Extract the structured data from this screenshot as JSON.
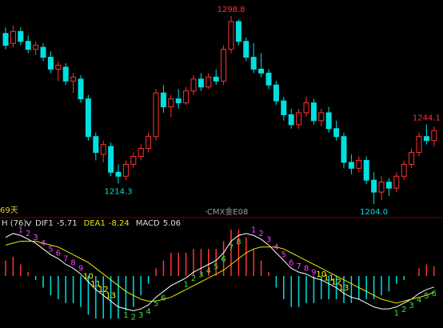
{
  "chart_data": [
    {
      "type": "candlestick",
      "period_label": "69天",
      "instrument": "·CMX金E08",
      "up_color": "#ff3232",
      "down_color": "#00e0e0",
      "open": [
        1290,
        1285,
        1291,
        1286,
        1282,
        1283,
        1278,
        1272,
        1273,
        1266,
        1267,
        1257,
        1238,
        1229,
        1233,
        1220,
        1218,
        1224,
        1228,
        1232,
        1238,
        1260,
        1253,
        1257,
        1255,
        1261,
        1267,
        1263,
        1268,
        1266,
        1282,
        1296,
        1286,
        1278,
        1272,
        1270,
        1264,
        1256,
        1249,
        1244,
        1250,
        1255,
        1246,
        1250,
        1242,
        1238,
        1225,
        1222,
        1226,
        1216,
        1210,
        1215,
        1212,
        1218,
        1224,
        1230,
        1238,
        1236
      ],
      "high": [
        1293,
        1294,
        1293,
        1289,
        1286,
        1285,
        1281,
        1276,
        1275,
        1270,
        1269,
        1259,
        1240,
        1236,
        1235,
        1224,
        1226,
        1230,
        1234,
        1240,
        1262,
        1264,
        1259,
        1262,
        1263,
        1269,
        1270,
        1270,
        1272,
        1284,
        1298.8,
        1297,
        1288,
        1285,
        1280,
        1272,
        1266,
        1258,
        1252,
        1252,
        1258,
        1257,
        1252,
        1253,
        1246,
        1240,
        1229,
        1228,
        1228,
        1220,
        1218,
        1217,
        1220,
        1226,
        1232,
        1240,
        1244.1,
        1243
      ],
      "low": [
        1282,
        1283,
        1284,
        1280,
        1279,
        1276,
        1270,
        1266,
        1264,
        1260,
        1255,
        1236,
        1226,
        1225,
        1218,
        1214.3,
        1216,
        1222,
        1226,
        1230,
        1236,
        1250,
        1248,
        1252,
        1254,
        1259,
        1261,
        1262,
        1264,
        1264,
        1280,
        1284,
        1276,
        1270,
        1268,
        1262,
        1254,
        1246,
        1242,
        1242,
        1248,
        1244,
        1243,
        1240,
        1236,
        1222,
        1219,
        1220,
        1214,
        1204.0,
        1206,
        1208,
        1210,
        1216,
        1222,
        1228,
        1234,
        1233
      ],
      "close": [
        1284,
        1291,
        1286,
        1282,
        1284,
        1278,
        1272,
        1274,
        1266,
        1268,
        1257,
        1238,
        1230,
        1234,
        1220,
        1218,
        1224,
        1228,
        1232,
        1238,
        1260,
        1253,
        1257,
        1255,
        1261,
        1267,
        1263,
        1268,
        1266,
        1282,
        1296,
        1286,
        1278,
        1272,
        1270,
        1264,
        1256,
        1249,
        1244,
        1250,
        1255,
        1246,
        1250,
        1242,
        1238,
        1225,
        1222,
        1226,
        1216,
        1210,
        1215,
        1212,
        1218,
        1224,
        1230,
        1238,
        1236,
        1241
      ],
      "annotations": [
        "1298.8",
        "1214.3",
        "1204.0",
        "1244.1"
      ]
    },
    {
      "type": "macd",
      "indicator": "H (76)",
      "series": [
        {
          "name": "DIF1",
          "color": "#ffffff",
          "values": [
            20,
            22,
            21,
            19,
            17,
            14,
            11,
            9,
            6,
            4,
            1,
            -3,
            -7,
            -10,
            -13,
            -16,
            -17,
            -18,
            -17,
            -15,
            -11,
            -8,
            -5,
            -3,
            -1,
            2,
            4,
            6,
            8,
            12,
            18,
            21,
            22,
            21,
            19,
            16,
            12,
            8,
            4,
            2,
            1,
            -1,
            -2,
            -4,
            -6,
            -9,
            -11,
            -12,
            -14,
            -16,
            -17,
            -17,
            -16,
            -14,
            -12,
            -9,
            -7,
            -5.71
          ]
        },
        {
          "name": "DEA1",
          "color": "#e6e600",
          "values": [
            16,
            17,
            18,
            18,
            18,
            17,
            16,
            15,
            13,
            11,
            9,
            7,
            4,
            1,
            -2,
            -5,
            -8,
            -10,
            -12,
            -13,
            -13,
            -12,
            -11,
            -9,
            -7,
            -5,
            -3,
            -1,
            1,
            3,
            6,
            9,
            12,
            14,
            15,
            15,
            15,
            14,
            12,
            10,
            8,
            6,
            4,
            2,
            0,
            -2,
            -4,
            -6,
            -8,
            -10,
            -12,
            -13,
            -14,
            -13,
            -12,
            -11,
            -10,
            -8.24
          ]
        },
        {
          "name": "MACD",
          "color": "#ffffff",
          "up_color": "#ff3232",
          "down_color": "#00e0e0",
          "values": [
            8,
            10,
            6,
            2,
            -2,
            -6,
            -10,
            -12,
            -14,
            -14,
            -16,
            -20,
            -22,
            -22,
            -22,
            -22,
            -18,
            -16,
            -10,
            -4,
            4,
            8,
            12,
            12,
            12,
            14,
            14,
            14,
            14,
            18,
            24,
            24,
            20,
            14,
            8,
            2,
            -6,
            -12,
            -16,
            -16,
            -14,
            -14,
            -12,
            -12,
            -12,
            -14,
            -14,
            -12,
            -12,
            -12,
            -10,
            -8,
            -4,
            -2,
            0,
            4,
            6,
            5.06
          ]
        }
      ],
      "td_sell": [
        null,
        null,
        1,
        2,
        3,
        4,
        5,
        6,
        7,
        8,
        9,
        10,
        11,
        12,
        13,
        null,
        null,
        null,
        null,
        null,
        null,
        null,
        null,
        null,
        null,
        null,
        null,
        null,
        null,
        null,
        null,
        null,
        null,
        1,
        2,
        3,
        4,
        5,
        6,
        7,
        8,
        9,
        10,
        11,
        12,
        13,
        null,
        null,
        null,
        null,
        null,
        null,
        null,
        null,
        null,
        null,
        null,
        null
      ],
      "td_buy": [
        null,
        null,
        null,
        null,
        null,
        null,
        null,
        null,
        null,
        null,
        null,
        null,
        null,
        null,
        null,
        null,
        1,
        2,
        3,
        4,
        5,
        6,
        null,
        null,
        1,
        2,
        3,
        4,
        5,
        6,
        7,
        8,
        null,
        null,
        null,
        null,
        null,
        null,
        null,
        null,
        null,
        null,
        null,
        null,
        null,
        null,
        null,
        null,
        null,
        null,
        null,
        null,
        1,
        2,
        3,
        4,
        5,
        6
      ],
      "sell_color": "#ff40ff",
      "count_color": "#ffff00",
      "buy_color": "#40e040"
    }
  ]
}
